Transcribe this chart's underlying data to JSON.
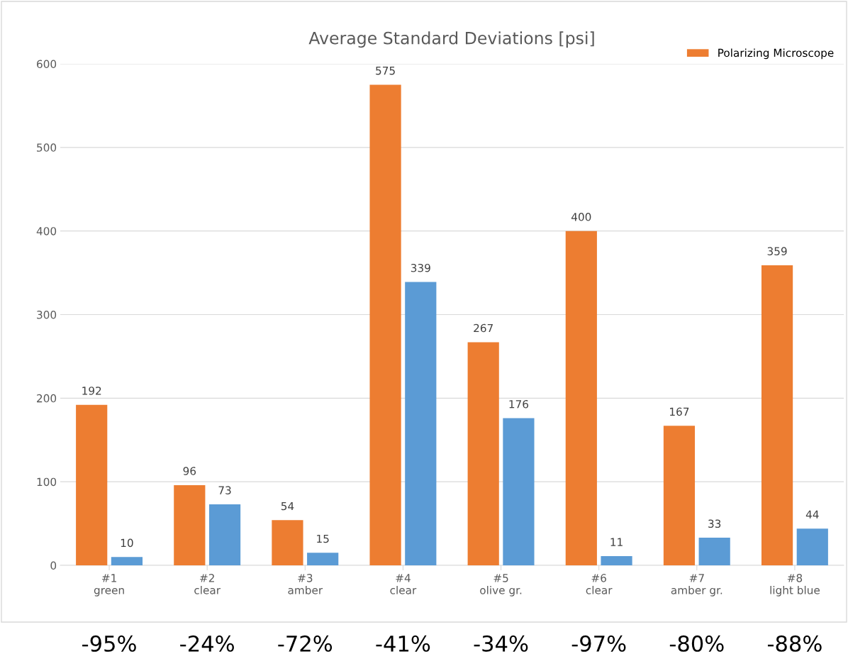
{
  "chart_data": {
    "type": "bar",
    "title": "Average Standard Deviations [psi]",
    "categories": [
      "#1\ngreen",
      "#2\nclear",
      "#3\namber",
      "#4\nclear",
      "#5\nolive gr.",
      "#6\nclear",
      "#7\namber gr.",
      "#8\nlight blue"
    ],
    "series": [
      {
        "name": "Polarizing Microscope",
        "color": "#ed7d31",
        "values": [
          192,
          96,
          54,
          575,
          267,
          400,
          167,
          359
        ]
      },
      {
        "color": "#5b9bd5",
        "values": [
          10,
          73,
          15,
          339,
          176,
          11,
          33,
          44
        ]
      }
    ],
    "ylim": [
      0,
      600
    ],
    "yticks": [
      0,
      100,
      200,
      300,
      400,
      500,
      600
    ],
    "grid": "y",
    "legend": "top right",
    "data_labels": true,
    "annotations": [
      "-95%",
      "-24%",
      "-72%",
      "-41%",
      "-34%",
      "-97%",
      "-80%",
      "-88%"
    ]
  }
}
